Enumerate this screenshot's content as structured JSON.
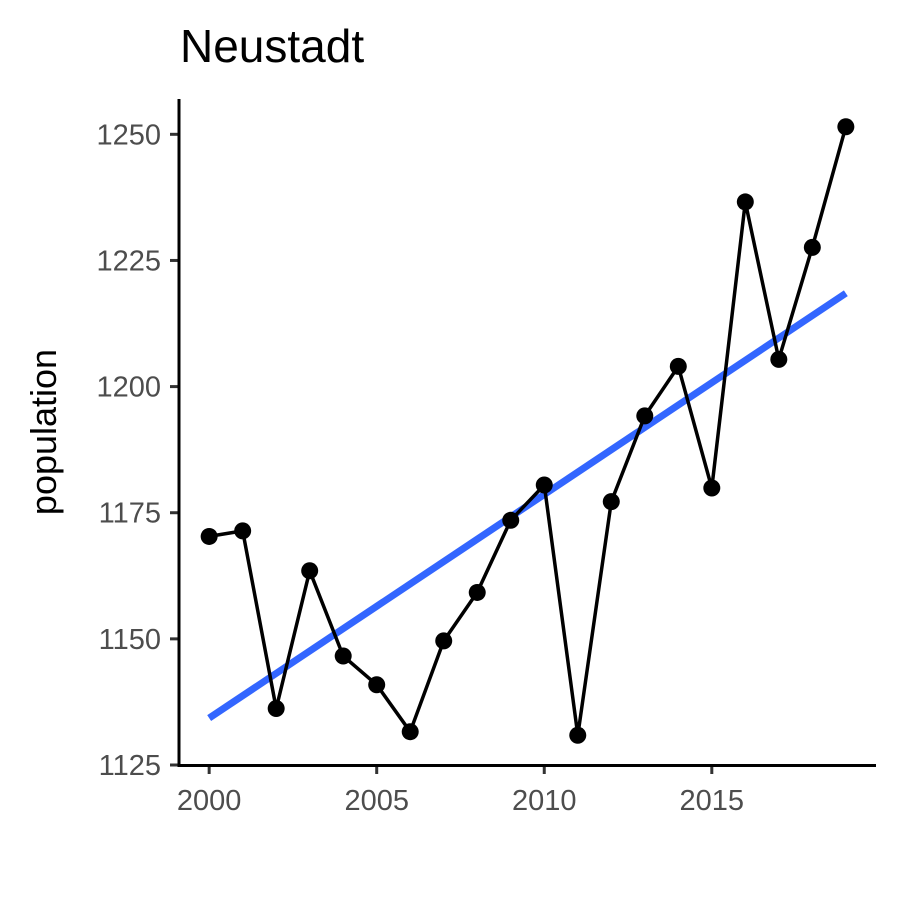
{
  "chart_data": {
    "type": "line",
    "title": "Neustadt",
    "xlabel": "",
    "ylabel": "population",
    "xlim": [
      1999.1,
      2019.9
    ],
    "ylim": [
      1125,
      1257
    ],
    "x_ticks": [
      2000,
      2005,
      2010,
      2015
    ],
    "y_ticks": [
      1125,
      1150,
      1175,
      1200,
      1225,
      1250
    ],
    "grid": false,
    "legend": "none",
    "series": [
      {
        "x": [
          2000,
          2001,
          2002,
          2003,
          2004,
          2005,
          2006,
          2007,
          2008,
          2009,
          2010,
          2011,
          2012,
          2013,
          2014,
          2015,
          2016,
          2017,
          2018,
          2019
        ],
        "y": [
          1170.3,
          1171.4,
          1136.2,
          1163.5,
          1146.6,
          1140.9,
          1131.6,
          1149.6,
          1159.2,
          1173.5,
          1180.5,
          1130.9,
          1177.2,
          1194.2,
          1204.0,
          1179.9,
          1236.6,
          1205.4,
          1227.6,
          1251.5
        ],
        "color": "#000000"
      }
    ],
    "trend": {
      "x": [
        2000,
        2019
      ],
      "y": [
        1134.3,
        1218.5
      ],
      "color": "#3366ff"
    }
  }
}
